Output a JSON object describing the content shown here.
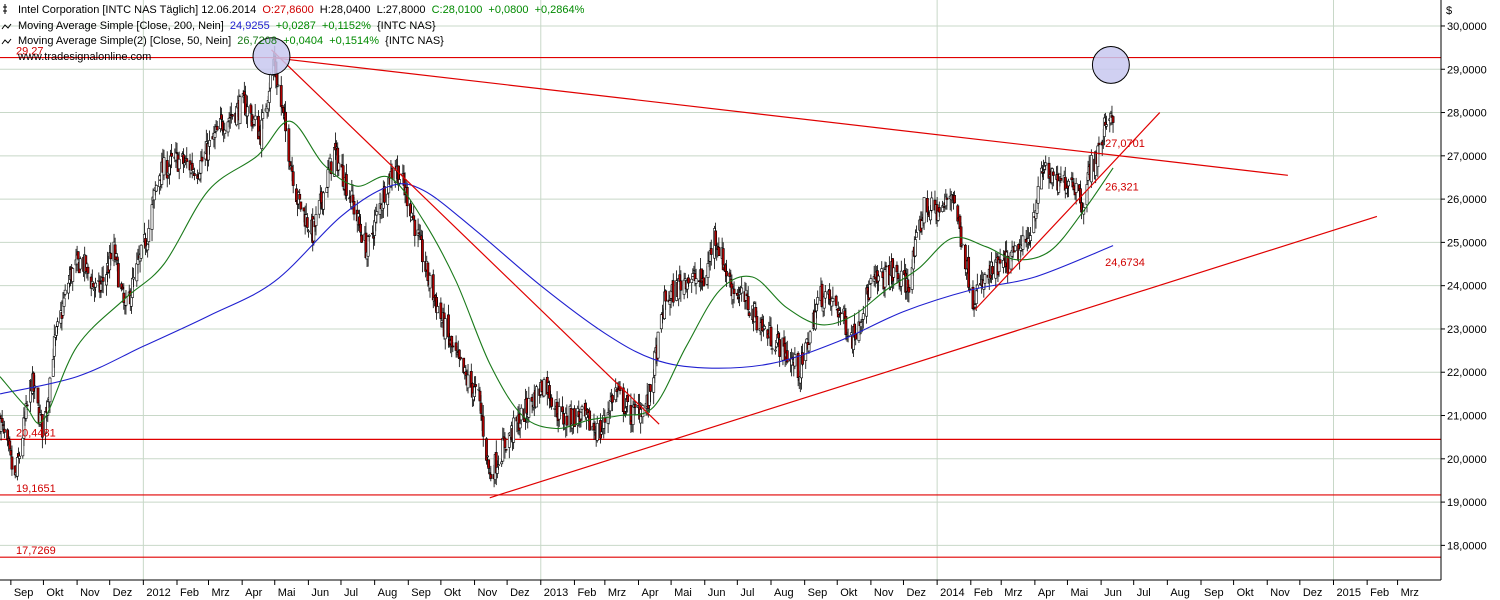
{
  "legend": {
    "line1": {
      "name": "Intel Corporation [INTC NAS  Täglich] 12.06.2014",
      "o": "O:27,8600",
      "h": "H:28,0400",
      "l": "L:27,8000",
      "c": "C:28,0100",
      "chg": "+0,0800",
      "pct": "+0,2864%"
    },
    "line2": {
      "name": "Moving Average Simple [Close, 200, Nein]",
      "val": "24,9255",
      "chg": "+0,0287",
      "pct": "+0,1152%",
      "sym": "{INTC NAS}"
    },
    "line3": {
      "name": "Moving Average Simple(2) [Close, 50, Nein]",
      "val": "26,7208",
      "chg": "+0,0404",
      "pct": "+0,1514%",
      "sym": "{INTC NAS}"
    },
    "source": "www.tradesignalonline.com"
  },
  "currency_symbol": "$",
  "colors": {
    "up_candle": "#ffffff",
    "down_candle": "#b00000",
    "candle_outline": "#000000",
    "ma200": "#2020d0",
    "ma50": "#1a7a1a",
    "trendline": "#e00000",
    "circle_fill": "#c8c8f0",
    "grid": "#c8d8c8"
  },
  "chart_data": {
    "type": "candlestick",
    "title": "Intel Corporation [INTC NAS  Täglich] 12.06.2014",
    "xlabel": "",
    "ylabel": "",
    "ylim": [
      17.2,
      30.6
    ],
    "x_range": [
      "2011-08-22",
      "2015-04-10"
    ],
    "x_ticks": [
      {
        "date": "2011-09-01",
        "label": "Sep"
      },
      {
        "date": "2011-10-01",
        "label": "Okt"
      },
      {
        "date": "2011-11-01",
        "label": "Nov"
      },
      {
        "date": "2011-12-01",
        "label": "Dez"
      },
      {
        "date": "2012-01-01",
        "label": "2012"
      },
      {
        "date": "2012-02-01",
        "label": "Feb"
      },
      {
        "date": "2012-03-01",
        "label": "Mrz"
      },
      {
        "date": "2012-04-01",
        "label": "Apr"
      },
      {
        "date": "2012-05-01",
        "label": "Mai"
      },
      {
        "date": "2012-06-01",
        "label": "Jun"
      },
      {
        "date": "2012-07-01",
        "label": "Jul"
      },
      {
        "date": "2012-08-01",
        "label": "Aug"
      },
      {
        "date": "2012-09-01",
        "label": "Sep"
      },
      {
        "date": "2012-10-01",
        "label": "Okt"
      },
      {
        "date": "2012-11-01",
        "label": "Nov"
      },
      {
        "date": "2012-12-01",
        "label": "Dez"
      },
      {
        "date": "2013-01-01",
        "label": "2013"
      },
      {
        "date": "2013-02-01",
        "label": "Feb"
      },
      {
        "date": "2013-03-01",
        "label": "Mrz"
      },
      {
        "date": "2013-04-01",
        "label": "Apr"
      },
      {
        "date": "2013-05-01",
        "label": "Mai"
      },
      {
        "date": "2013-06-01",
        "label": "Jun"
      },
      {
        "date": "2013-07-01",
        "label": "Jul"
      },
      {
        "date": "2013-08-01",
        "label": "Aug"
      },
      {
        "date": "2013-09-01",
        "label": "Sep"
      },
      {
        "date": "2013-10-01",
        "label": "Okt"
      },
      {
        "date": "2013-11-01",
        "label": "Nov"
      },
      {
        "date": "2013-12-01",
        "label": "Dez"
      },
      {
        "date": "2014-01-01",
        "label": "2014"
      },
      {
        "date": "2014-02-01",
        "label": "Feb"
      },
      {
        "date": "2014-03-01",
        "label": "Mrz"
      },
      {
        "date": "2014-04-01",
        "label": "Apr"
      },
      {
        "date": "2014-05-01",
        "label": "Mai"
      },
      {
        "date": "2014-06-01",
        "label": "Jun"
      },
      {
        "date": "2014-07-01",
        "label": "Jul"
      },
      {
        "date": "2014-08-01",
        "label": "Aug"
      },
      {
        "date": "2014-09-01",
        "label": "Sep"
      },
      {
        "date": "2014-10-01",
        "label": "Okt"
      },
      {
        "date": "2014-11-01",
        "label": "Nov"
      },
      {
        "date": "2014-12-01",
        "label": "Dez"
      },
      {
        "date": "2015-01-01",
        "label": "2015"
      },
      {
        "date": "2015-02-01",
        "label": "Feb"
      },
      {
        "date": "2015-03-01",
        "label": "Mrz"
      }
    ],
    "y_ticks": [
      18,
      19,
      20,
      21,
      22,
      23,
      24,
      25,
      26,
      27,
      28,
      29,
      30
    ],
    "y_tick_labels": [
      "18,0000",
      "19,0000",
      "20,0000",
      "21,0000",
      "22,0000",
      "23,0000",
      "24,0000",
      "25,0000",
      "26,0000",
      "27,0000",
      "28,0000",
      "29,0000",
      "30,0000"
    ],
    "price_anchors": [
      [
        "2011-08-22",
        20.9
      ],
      [
        "2011-09-05",
        19.5
      ],
      [
        "2011-09-20",
        21.8
      ],
      [
        "2011-10-01",
        20.6
      ],
      [
        "2011-10-10",
        22.5
      ],
      [
        "2011-10-25",
        24.2
      ],
      [
        "2011-11-05",
        24.6
      ],
      [
        "2011-11-20",
        23.8
      ],
      [
        "2011-12-05",
        24.8
      ],
      [
        "2011-12-15",
        23.4
      ],
      [
        "2012-01-05",
        25.2
      ],
      [
        "2012-01-15",
        26.6
      ],
      [
        "2012-02-01",
        26.9
      ],
      [
        "2012-02-20",
        26.7
      ],
      [
        "2012-03-15",
        27.8
      ],
      [
        "2012-04-03",
        28.2
      ],
      [
        "2012-04-18",
        27.5
      ],
      [
        "2012-04-30",
        29.2
      ],
      [
        "2012-05-12",
        27.4
      ],
      [
        "2012-05-22",
        26.0
      ],
      [
        "2012-06-05",
        25.2
      ],
      [
        "2012-06-25",
        27.1
      ],
      [
        "2012-07-08",
        26.2
      ],
      [
        "2012-07-25",
        24.8
      ],
      [
        "2012-08-10",
        26.2
      ],
      [
        "2012-08-20",
        26.8
      ],
      [
        "2012-09-01",
        26.0
      ],
      [
        "2012-09-20",
        24.1
      ],
      [
        "2012-10-10",
        22.6
      ],
      [
        "2012-10-25",
        21.8
      ],
      [
        "2012-11-05",
        21.4
      ],
      [
        "2012-11-15",
        19.6
      ],
      [
        "2012-11-30",
        20.4
      ],
      [
        "2012-12-10",
        20.8
      ],
      [
        "2013-01-05",
        21.8
      ],
      [
        "2013-01-20",
        20.9
      ],
      [
        "2013-02-05",
        21.0
      ],
      [
        "2013-02-25",
        20.6
      ],
      [
        "2013-03-10",
        21.6
      ],
      [
        "2013-03-25",
        21.0
      ],
      [
        "2013-04-10",
        21.3
      ],
      [
        "2013-04-25",
        23.6
      ],
      [
        "2013-05-15",
        24.2
      ],
      [
        "2013-06-01",
        24.1
      ],
      [
        "2013-06-10",
        25.2
      ],
      [
        "2013-06-25",
        24.0
      ],
      [
        "2013-07-10",
        23.6
      ],
      [
        "2013-07-25",
        23.0
      ],
      [
        "2013-08-10",
        22.6
      ],
      [
        "2013-08-28",
        22.0
      ],
      [
        "2013-09-15",
        23.8
      ],
      [
        "2013-10-01",
        23.5
      ],
      [
        "2013-10-15",
        22.8
      ],
      [
        "2013-11-01",
        24.0
      ],
      [
        "2013-11-20",
        24.3
      ],
      [
        "2013-12-05",
        24.0
      ],
      [
        "2013-12-20",
        25.8
      ],
      [
        "2014-01-05",
        25.7
      ],
      [
        "2014-01-15",
        26.2
      ],
      [
        "2014-02-03",
        23.7
      ],
      [
        "2014-02-20",
        24.3
      ],
      [
        "2014-03-10",
        24.6
      ],
      [
        "2014-03-25",
        25.0
      ],
      [
        "2014-04-10",
        26.8
      ],
      [
        "2014-04-20",
        26.3
      ],
      [
        "2014-05-05",
        26.5
      ],
      [
        "2014-05-15",
        25.9
      ],
      [
        "2014-05-22",
        26.7
      ],
      [
        "2014-06-01",
        27.2
      ],
      [
        "2014-06-06",
        27.9
      ],
      [
        "2014-06-12",
        28.01
      ]
    ],
    "ma200_points": [
      [
        "2011-08-22",
        21.5
      ],
      [
        "2011-11-01",
        21.9
      ],
      [
        "2012-01-01",
        22.6
      ],
      [
        "2012-03-01",
        23.3
      ],
      [
        "2012-05-01",
        24.1
      ],
      [
        "2012-07-01",
        25.6
      ],
      [
        "2012-08-15",
        26.3
      ],
      [
        "2012-09-15",
        26.2
      ],
      [
        "2012-11-01",
        25.3
      ],
      [
        "2013-01-01",
        24.0
      ],
      [
        "2013-03-01",
        22.9
      ],
      [
        "2013-04-15",
        22.3
      ],
      [
        "2013-06-01",
        22.1
      ],
      [
        "2013-08-01",
        22.2
      ],
      [
        "2013-10-01",
        22.7
      ],
      [
        "2013-12-01",
        23.4
      ],
      [
        "2014-02-01",
        23.9
      ],
      [
        "2014-04-01",
        24.2
      ],
      [
        "2014-06-12",
        24.9255
      ]
    ],
    "ma50_points": [
      [
        "2011-08-22",
        21.9
      ],
      [
        "2011-09-15",
        21.2
      ],
      [
        "2011-10-01",
        20.9
      ],
      [
        "2011-11-01",
        22.6
      ],
      [
        "2011-12-15",
        23.7
      ],
      [
        "2012-01-20",
        24.5
      ],
      [
        "2012-03-01",
        26.2
      ],
      [
        "2012-04-15",
        27.0
      ],
      [
        "2012-05-15",
        27.8
      ],
      [
        "2012-06-15",
        26.8
      ],
      [
        "2012-07-15",
        26.3
      ],
      [
        "2012-08-15",
        26.5
      ],
      [
        "2012-09-15",
        25.5
      ],
      [
        "2012-10-15",
        24.1
      ],
      [
        "2012-11-15",
        22.2
      ],
      [
        "2012-12-15",
        21.0
      ],
      [
        "2013-01-15",
        20.7
      ],
      [
        "2013-02-15",
        20.9
      ],
      [
        "2013-03-15",
        21.0
      ],
      [
        "2013-04-15",
        21.2
      ],
      [
        "2013-05-15",
        22.6
      ],
      [
        "2013-06-15",
        23.9
      ],
      [
        "2013-07-15",
        24.2
      ],
      [
        "2013-08-15",
        23.5
      ],
      [
        "2013-09-15",
        23.1
      ],
      [
        "2013-10-15",
        23.3
      ],
      [
        "2013-11-15",
        23.9
      ],
      [
        "2013-12-15",
        24.4
      ],
      [
        "2014-01-15",
        25.1
      ],
      [
        "2014-02-15",
        24.9
      ],
      [
        "2014-03-15",
        24.6
      ],
      [
        "2014-04-15",
        24.8
      ],
      [
        "2014-05-15",
        25.7
      ],
      [
        "2014-06-12",
        26.7208
      ]
    ],
    "horizontal_levels": [
      {
        "value": 29.27,
        "label": "29,27"
      },
      {
        "value": 20.4481,
        "label": "20,4481"
      },
      {
        "value": 19.1651,
        "label": "19,1651"
      },
      {
        "value": 17.7269,
        "label": "17,7269"
      }
    ],
    "trendlines": [
      {
        "name": "resistance",
        "from": [
          "2012-04-28",
          29.27
        ],
        "to": [
          "2014-11-20",
          26.55
        ]
      },
      {
        "name": "fall",
        "from": [
          "2012-04-28",
          29.45
        ],
        "to": [
          "2013-04-20",
          20.8
        ]
      },
      {
        "name": "support-long",
        "from": [
          "2012-11-15",
          19.1
        ],
        "to": [
          "2015-02-10",
          25.6
        ]
      },
      {
        "name": "support-short",
        "from": [
          "2014-02-05",
          23.45
        ],
        "to": [
          "2014-07-25",
          28.0
        ]
      }
    ],
    "trendline_labels": [
      {
        "at": [
          "2014-06-01",
          27.2
        ],
        "label": "27,0701"
      },
      {
        "at": [
          "2014-06-01",
          26.2
        ],
        "label": "26,321"
      },
      {
        "at": [
          "2014-06-01",
          24.45
        ],
        "label": "24,6734"
      }
    ],
    "circles": [
      {
        "center": [
          "2012-04-28",
          29.3
        ],
        "radius_days": 17
      },
      {
        "center": [
          "2014-06-10",
          29.1
        ],
        "radius_days": 17
      }
    ]
  }
}
